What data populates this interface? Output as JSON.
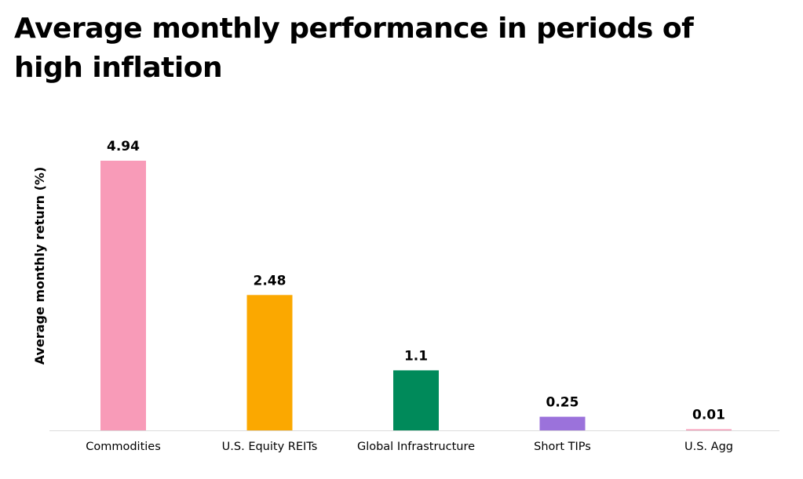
{
  "page": {
    "title": "Average monthly performance in periods of high inflation"
  },
  "chart_data": {
    "type": "bar",
    "title": "Average monthly performance in periods of high inflation",
    "xlabel": "",
    "ylabel": "Average monthly return (%)",
    "categories": [
      "Commodities",
      "U.S. Equity REITs",
      "Global Infrastructure",
      "Short TIPs",
      "U.S. Agg"
    ],
    "values": [
      4.94,
      2.48,
      1.1,
      0.25,
      0.01
    ],
    "value_labels": [
      "4.94",
      "2.48",
      "1.1",
      "0.25",
      "0.01"
    ],
    "colors": [
      "#f89bb8",
      "#fba800",
      "#008a5a",
      "#9b72db",
      "#f89bb8"
    ],
    "ylim": [
      0,
      4.94
    ],
    "grid": false,
    "legend": "none"
  }
}
